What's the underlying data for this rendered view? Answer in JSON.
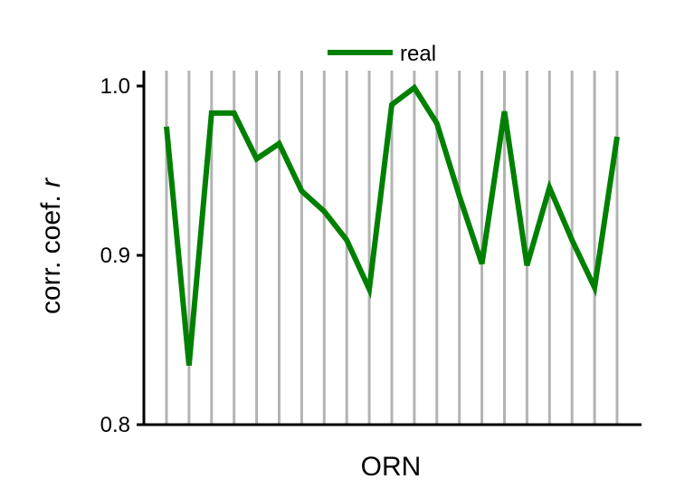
{
  "chart_data": {
    "type": "line",
    "xlabel": "ORN",
    "ylabel": "corr. coef. ",
    "ylabel_italic": "r",
    "ylim": [
      0.8,
      1.0
    ],
    "yticks": [
      "0.8",
      "0.9",
      "1.0"
    ],
    "x_gridlines": "vertical gray line at every ORN",
    "legend_position": "top-center",
    "series": [
      {
        "name": "real",
        "color": "#008000",
        "values": [
          0.976,
          0.835,
          0.984,
          0.984,
          0.957,
          0.966,
          0.938,
          0.926,
          0.909,
          0.88,
          0.989,
          0.999,
          0.978,
          0.935,
          0.895,
          0.985,
          0.894,
          0.94,
          0.909,
          0.881,
          0.97
        ]
      }
    ]
  },
  "colors": {
    "gridline": "#b3b3b3",
    "axis": "#000000"
  }
}
